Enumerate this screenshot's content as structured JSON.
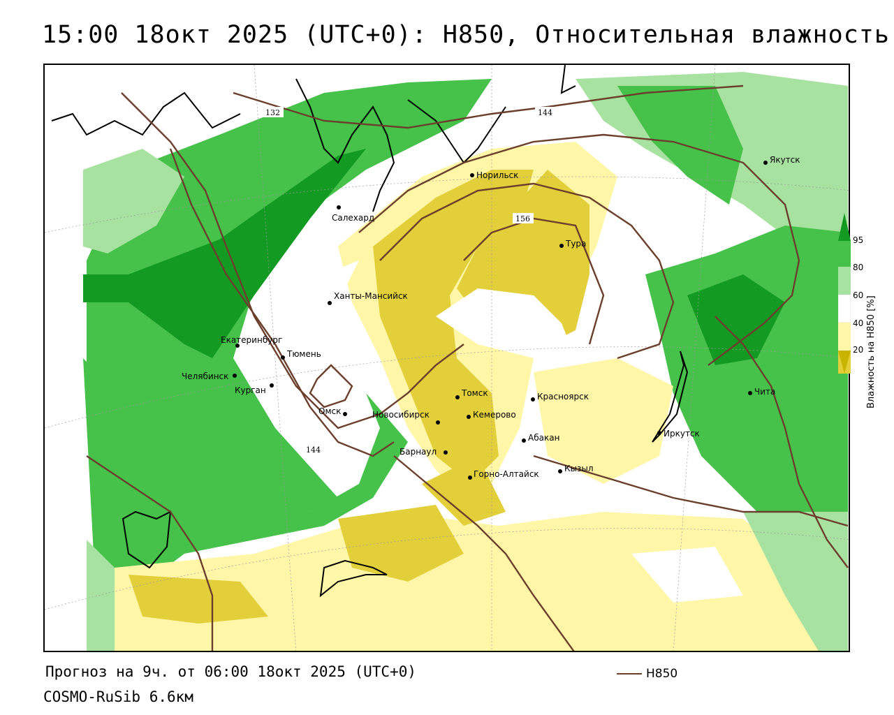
{
  "title": "15:00 18окт 2025 (UTC+0): H850, Относительная влажность",
  "footer": {
    "forecast": "Прогноз на 9ч. от 06:00 18окт 2025 (UTC+0)",
    "model": "COSMO-RuSib 6.6км",
    "contour_legend": "H850"
  },
  "legend": {
    "title": "Влажность на H850 [%]",
    "ticks": [
      "95",
      "80",
      "60",
      "40",
      "20"
    ],
    "colors": {
      "lt20": "#c8b400",
      "20_40": "#e2cf3a",
      "40_60": "#fff6a8",
      "60_80": "#ffffff",
      "80_95": "#a8e2a0",
      "95_plus": "#46c24a",
      "top": "#139a22"
    }
  },
  "contour_color": "#6b3f2c",
  "contour_labels": [
    "132",
    "144",
    "156",
    "144"
  ],
  "cities": [
    "Салехард",
    "Норильск",
    "Якутск",
    "Тура",
    "Ханты-Мансийск",
    "Екатеринбург",
    "Тюмень",
    "Челябинск",
    "Курган",
    "Омск",
    "Новосибирск",
    "Томск",
    "Кемерово",
    "Красноярск",
    "Барнаул",
    "Абакан",
    "Горно-Алтайск",
    "Кызыл",
    "Иркутск",
    "Чита"
  ]
}
